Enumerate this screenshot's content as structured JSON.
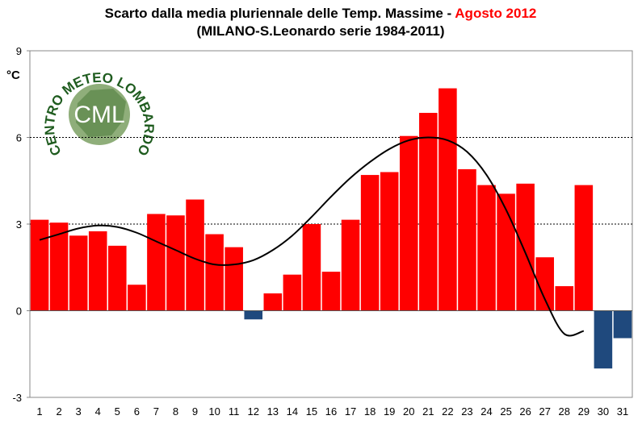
{
  "chart_data": {
    "type": "bar",
    "title_part1": "Scarto dalla media pluriennale delle Temp. Massime - ",
    "title_highlight": "Agosto 2012",
    "subtitle": "(MILANO-S.Leonardo serie 1984-2011)",
    "ylabel": "°C",
    "xlabel": "",
    "ylim": [
      -3,
      9
    ],
    "yticks": [
      "-3",
      "0",
      "3",
      "6",
      "9"
    ],
    "gridlines": [
      3,
      6
    ],
    "categories": [
      "1",
      "2",
      "3",
      "4",
      "5",
      "6",
      "7",
      "8",
      "9",
      "10",
      "11",
      "12",
      "13",
      "14",
      "15",
      "16",
      "17",
      "18",
      "19",
      "20",
      "21",
      "22",
      "23",
      "24",
      "25",
      "26",
      "27",
      "28",
      "29",
      "30",
      "31"
    ],
    "values": [
      3.15,
      3.05,
      2.6,
      2.75,
      2.25,
      0.9,
      3.35,
      3.3,
      3.85,
      2.65,
      2.2,
      -0.3,
      0.6,
      1.25,
      3.0,
      1.35,
      3.15,
      4.7,
      4.8,
      6.05,
      6.85,
      7.7,
      4.9,
      4.35,
      4.05,
      4.4,
      1.85,
      0.85,
      4.35,
      -2.0,
      -0.95
    ],
    "trendline": [
      2.45,
      2.65,
      2.85,
      2.95,
      2.9,
      2.7,
      2.4,
      2.1,
      1.8,
      1.6,
      1.6,
      1.75,
      2.1,
      2.6,
      3.25,
      3.95,
      4.6,
      5.15,
      5.6,
      5.9,
      6.0,
      5.9,
      5.5,
      4.7,
      3.5,
      2.0,
      0.4,
      -0.8,
      -0.7
    ],
    "trendline_start_index": 0,
    "colors": {
      "positive": "#ff0000",
      "negative": "#1f497d",
      "trend": "#000000",
      "grid": "#000000",
      "highlight": "#ff0000"
    },
    "legend": "none"
  },
  "logo": {
    "arc_text": "CENTRO METEO LOMBARDO",
    "monogram": "CML",
    "color": "#1f5c1f"
  }
}
